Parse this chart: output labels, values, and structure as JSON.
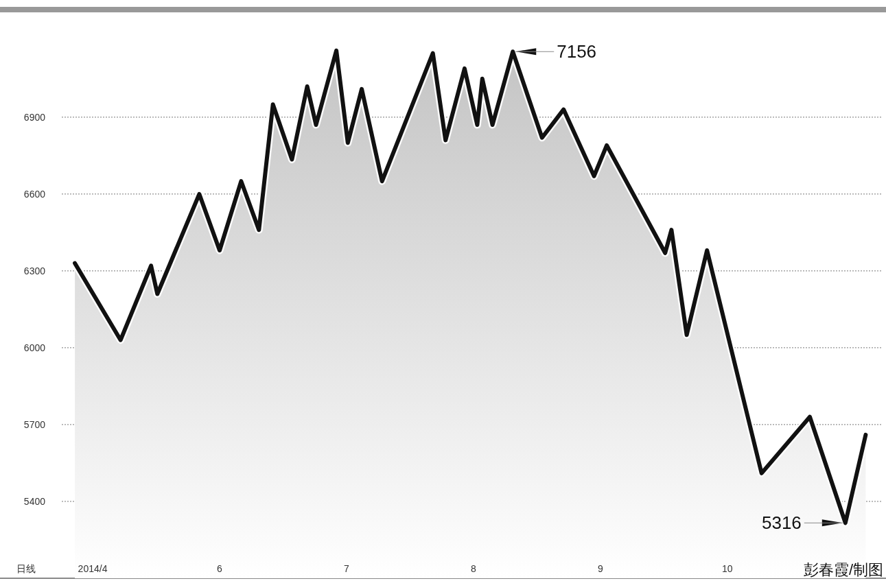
{
  "chart_data": {
    "type": "area",
    "xlabel": "日线",
    "x": [
      4.86,
      5.22,
      5.46,
      5.51,
      5.84,
      6.0,
      6.17,
      6.31,
      6.42,
      6.57,
      6.69,
      6.76,
      6.92,
      7.01,
      7.12,
      7.28,
      7.68,
      7.78,
      7.93,
      8.03,
      8.07,
      8.15,
      8.31,
      8.54,
      8.71,
      8.95,
      9.05,
      9.51,
      9.56,
      9.68,
      9.84,
      10.27,
      10.65,
      10.93,
      11.09
    ],
    "series": [
      {
        "color": "#111111",
        "values": [
          6330,
          6030,
          6320,
          6210,
          6600,
          6380,
          6650,
          6460,
          6950,
          6735,
          7020,
          6870,
          7160,
          6800,
          7010,
          6650,
          7150,
          6810,
          7090,
          6870,
          7050,
          6870,
          7156,
          6820,
          6930,
          6670,
          6790,
          6370,
          6460,
          6050,
          6380,
          5510,
          5730,
          5316,
          5660
        ]
      }
    ],
    "xlim": [
      4.27,
      11.25
    ],
    "ylim": [
      5100,
      7320
    ],
    "xticks": [
      {
        "value": 5,
        "label": "2014/4"
      },
      6,
      7,
      8,
      9,
      10
    ],
    "yticks": [
      5400,
      5700,
      6000,
      6300,
      6600,
      6900
    ],
    "grid": "y",
    "marker": "none",
    "line_style": "solid",
    "annotations": [
      {
        "text": "7156",
        "x": 8.31,
        "y": 7156
      },
      {
        "text": "5316",
        "x": 10.93,
        "y": 5316
      },
      "彭春霞/制图"
    ]
  }
}
